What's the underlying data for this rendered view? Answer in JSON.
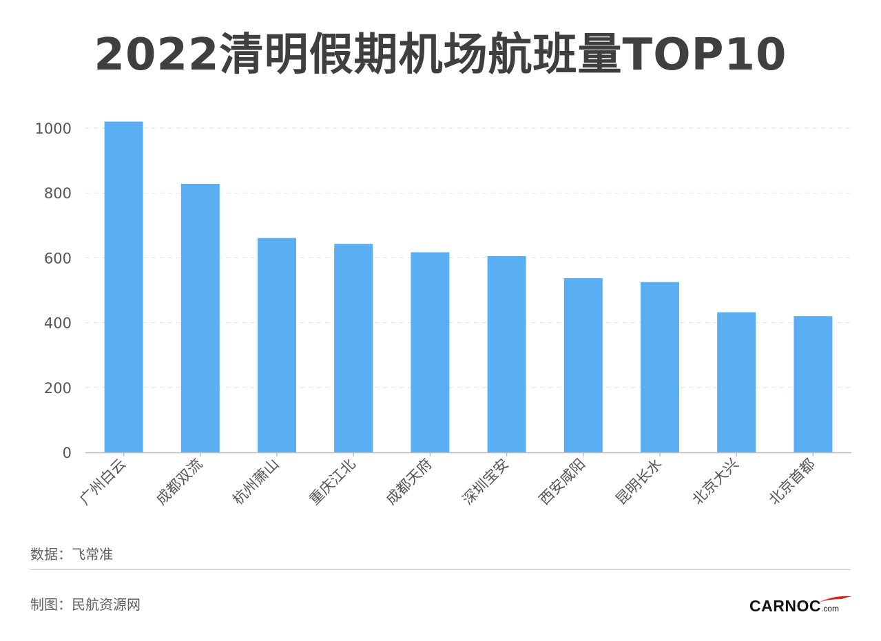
{
  "title": "2022清明假期机场航班量TOP10",
  "chart_data": {
    "type": "bar",
    "categories": [
      "广州白云",
      "成都双流",
      "杭州萧山",
      "重庆江北",
      "成都天府",
      "深圳宝安",
      "西安咸阳",
      "昆明长水",
      "北京大兴",
      "北京首都"
    ],
    "values": [
      1020,
      828,
      661,
      643,
      617,
      605,
      537,
      525,
      432,
      420
    ],
    "ylim": [
      0,
      1000
    ],
    "yticks": [
      0,
      200,
      400,
      600,
      800,
      1000
    ],
    "grid": true,
    "bar_color": "#5aaef2"
  },
  "footer": {
    "source": "数据：飞常准",
    "credit": "制图：民航资源网"
  },
  "logo": {
    "word": "CARNOC",
    "suffix": ".com",
    "accent_color": "#d7241f"
  }
}
